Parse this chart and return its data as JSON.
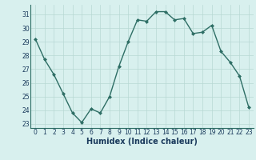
{
  "x": [
    0,
    1,
    2,
    3,
    4,
    5,
    6,
    7,
    8,
    9,
    10,
    11,
    12,
    13,
    14,
    15,
    16,
    17,
    18,
    19,
    20,
    21,
    22,
    23
  ],
  "y": [
    29.2,
    27.7,
    26.6,
    25.2,
    23.8,
    23.1,
    24.1,
    23.8,
    25.0,
    27.2,
    29.0,
    30.6,
    30.5,
    31.2,
    31.2,
    30.6,
    30.7,
    29.6,
    29.7,
    30.2,
    28.3,
    27.5,
    26.5,
    24.2
  ],
  "line_color": "#2e6e65",
  "marker": "D",
  "marker_size": 2.0,
  "line_width": 1.0,
  "bg_color": "#d8f0ee",
  "grid_color": "#b8d8d4",
  "xlabel": "Humidex (Indice chaleur)",
  "ylim": [
    22.7,
    31.7
  ],
  "xlim": [
    -0.5,
    23.5
  ],
  "yticks": [
    23,
    24,
    25,
    26,
    27,
    28,
    29,
    30,
    31
  ],
  "xticks": [
    0,
    1,
    2,
    3,
    4,
    5,
    6,
    7,
    8,
    9,
    10,
    11,
    12,
    13,
    14,
    15,
    16,
    17,
    18,
    19,
    20,
    21,
    22,
    23
  ],
  "tick_label_fontsize": 5.5,
  "xlabel_fontsize": 7.0
}
